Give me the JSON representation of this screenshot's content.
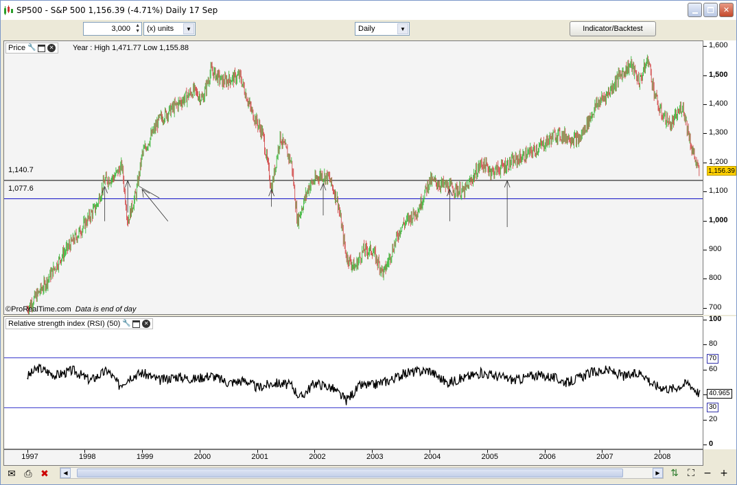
{
  "window": {
    "title": "SP500 - S&P 500    1,156.39 (-4.71%)    Daily  17 Sep",
    "buttons": [
      "minimize",
      "maximize",
      "close"
    ]
  },
  "toolbar": {
    "units_value": "3,000",
    "units_select": "(x) units",
    "period_select": "Daily",
    "indicator_button": "Indicator/Backtest"
  },
  "price_panel": {
    "name": "Price",
    "info": "Year : High 1,471.77 Low 1,155.88",
    "watermark": "ProRealTime.com",
    "watermark_note": "Data is end of day",
    "last_price": "1,156.39",
    "line_labels": [
      "1,140.7",
      "1,077.6"
    ],
    "y_labels": [
      "1,600",
      "1,500",
      "1,400",
      "1,300",
      "1,200",
      "1,100",
      "1,000",
      "900",
      "800",
      "700"
    ]
  },
  "rsi_panel": {
    "name": "Relative strength index (RSI) (50)",
    "y_labels": [
      "100",
      "80",
      "60",
      "40",
      "20",
      "0"
    ],
    "upper_level": "70",
    "lower_level": "30",
    "last_value": "40.965"
  },
  "x_axis": {
    "years": [
      "1997",
      "1998",
      "1999",
      "2000",
      "2001",
      "2002",
      "2003",
      "2004",
      "2005",
      "2006",
      "2007",
      "2008"
    ]
  },
  "colors": {
    "up": "#3cb83c",
    "down": "#d24a4a",
    "support": "#3333cc",
    "resistance": "#000000"
  },
  "chart_data": {
    "type": "line",
    "price_series_points": [
      [
        1997.0,
        700
      ],
      [
        1997.3,
        780
      ],
      [
        1997.6,
        880
      ],
      [
        1997.9,
        960
      ],
      [
        1998.2,
        1050
      ],
      [
        1998.35,
        1140
      ],
      [
        1998.5,
        1150
      ],
      [
        1998.65,
        1190
      ],
      [
        1998.75,
        1000
      ],
      [
        1998.9,
        1100
      ],
      [
        1999.0,
        1230
      ],
      [
        1999.3,
        1350
      ],
      [
        1999.6,
        1400
      ],
      [
        1999.9,
        1450
      ],
      [
        2000.05,
        1420
      ],
      [
        2000.2,
        1520
      ],
      [
        2000.4,
        1480
      ],
      [
        2000.7,
        1500
      ],
      [
        2000.9,
        1380
      ],
      [
        2001.1,
        1300
      ],
      [
        2001.25,
        1110
      ],
      [
        2001.4,
        1290
      ],
      [
        2001.6,
        1200
      ],
      [
        2001.7,
        1000
      ],
      [
        2001.9,
        1120
      ],
      [
        2002.1,
        1160
      ],
      [
        2002.25,
        1150
      ],
      [
        2002.4,
        1070
      ],
      [
        2002.55,
        880
      ],
      [
        2002.7,
        840
      ],
      [
        2002.85,
        900
      ],
      [
        2003.0,
        900
      ],
      [
        2003.2,
        820
      ],
      [
        2003.5,
        980
      ],
      [
        2003.8,
        1040
      ],
      [
        2004.0,
        1140
      ],
      [
        2004.3,
        1120
      ],
      [
        2004.6,
        1100
      ],
      [
        2004.9,
        1200
      ],
      [
        2005.1,
        1170
      ],
      [
        2005.4,
        1200
      ],
      [
        2005.7,
        1230
      ],
      [
        2005.95,
        1260
      ],
      [
        2006.2,
        1300
      ],
      [
        2006.4,
        1290
      ],
      [
        2006.6,
        1280
      ],
      [
        2006.9,
        1400
      ],
      [
        2007.1,
        1440
      ],
      [
        2007.3,
        1500
      ],
      [
        2007.5,
        1540
      ],
      [
        2007.65,
        1480
      ],
      [
        2007.8,
        1560
      ],
      [
        2007.9,
        1450
      ],
      [
        2008.0,
        1380
      ],
      [
        2008.2,
        1330
      ],
      [
        2008.4,
        1400
      ],
      [
        2008.55,
        1260
      ],
      [
        2008.7,
        1156.39
      ]
    ],
    "rsi_points": [
      [
        1997.0,
        55
      ],
      [
        1997.2,
        62
      ],
      [
        1997.5,
        56
      ],
      [
        1997.8,
        60
      ],
      [
        1998.1,
        52
      ],
      [
        1998.4,
        60
      ],
      [
        1998.6,
        48
      ],
      [
        1998.8,
        55
      ],
      [
        1999.0,
        58
      ],
      [
        1999.3,
        52
      ],
      [
        1999.6,
        55
      ],
      [
        1999.9,
        53
      ],
      [
        2000.2,
        56
      ],
      [
        2000.5,
        50
      ],
      [
        2000.8,
        52
      ],
      [
        2001.0,
        46
      ],
      [
        2001.3,
        50
      ],
      [
        2001.6,
        48
      ],
      [
        2001.75,
        38
      ],
      [
        2002.0,
        50
      ],
      [
        2002.3,
        46
      ],
      [
        2002.55,
        36
      ],
      [
        2002.8,
        48
      ],
      [
        2003.0,
        48
      ],
      [
        2003.3,
        52
      ],
      [
        2003.6,
        58
      ],
      [
        2004.0,
        60
      ],
      [
        2004.3,
        50
      ],
      [
        2004.6,
        54
      ],
      [
        2004.9,
        58
      ],
      [
        2005.2,
        55
      ],
      [
        2005.5,
        52
      ],
      [
        2005.8,
        56
      ],
      [
        2006.1,
        55
      ],
      [
        2006.4,
        50
      ],
      [
        2006.8,
        58
      ],
      [
        2007.1,
        60
      ],
      [
        2007.4,
        55
      ],
      [
        2007.7,
        58
      ],
      [
        2007.9,
        48
      ],
      [
        2008.2,
        45
      ],
      [
        2008.5,
        50
      ],
      [
        2008.7,
        40.965
      ]
    ],
    "support_levels": [
      1140.7,
      1077.6
    ],
    "rsi_levels": [
      70,
      30
    ],
    "price_ylim": [
      680,
      1620
    ],
    "rsi_ylim": [
      0,
      100
    ],
    "xlim": [
      1996.6,
      2008.75
    ]
  }
}
